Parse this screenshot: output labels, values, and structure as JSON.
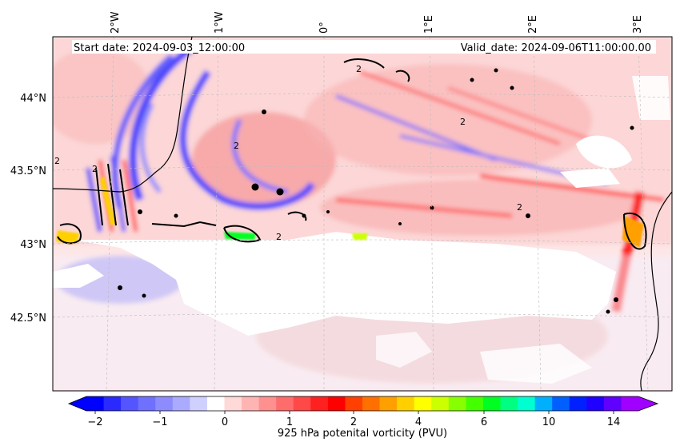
{
  "map": {
    "start_label": "Start date: 2024-09-03_12:00:00",
    "valid_label": "Valid_date: 2024-09-06T11:00:00.00",
    "lon_labels": [
      "2°W",
      "1°W",
      "0°",
      "1°E",
      "2°E",
      "3°E"
    ],
    "lat_labels": [
      "44°N",
      "43.5°N",
      "43°N",
      "42.5°N"
    ],
    "contour_label": "2",
    "colors": {
      "positive": "#ff2020",
      "negative": "#1a1aff",
      "neutral": "#ffffff",
      "coastline": "#000000",
      "gridline": "#bbbbbb"
    }
  },
  "colorbar": {
    "tick_labels": [
      "−2",
      "−1",
      "0",
      "1",
      "2",
      "4",
      "6",
      "10",
      "14"
    ],
    "label": "925 hPa potenital vorticity (PVU)",
    "colors": [
      "#0000ff",
      "#2a2aff",
      "#5555ff",
      "#7070ff",
      "#8c8cff",
      "#aaaaff",
      "#d0d0ff",
      "#ffffff",
      "#ffd8d8",
      "#ffb4b4",
      "#ff9090",
      "#ff6c6c",
      "#ff4848",
      "#ff2020",
      "#ff0000",
      "#ff4000",
      "#ff7000",
      "#ffa000",
      "#ffd000",
      "#ffff00",
      "#ccff00",
      "#88ff00",
      "#44ff00",
      "#00ff20",
      "#00ff80",
      "#00ffd0",
      "#00b0ff",
      "#0060ff",
      "#0020ff",
      "#2000ff",
      "#6000ff",
      "#a000ff"
    ]
  }
}
